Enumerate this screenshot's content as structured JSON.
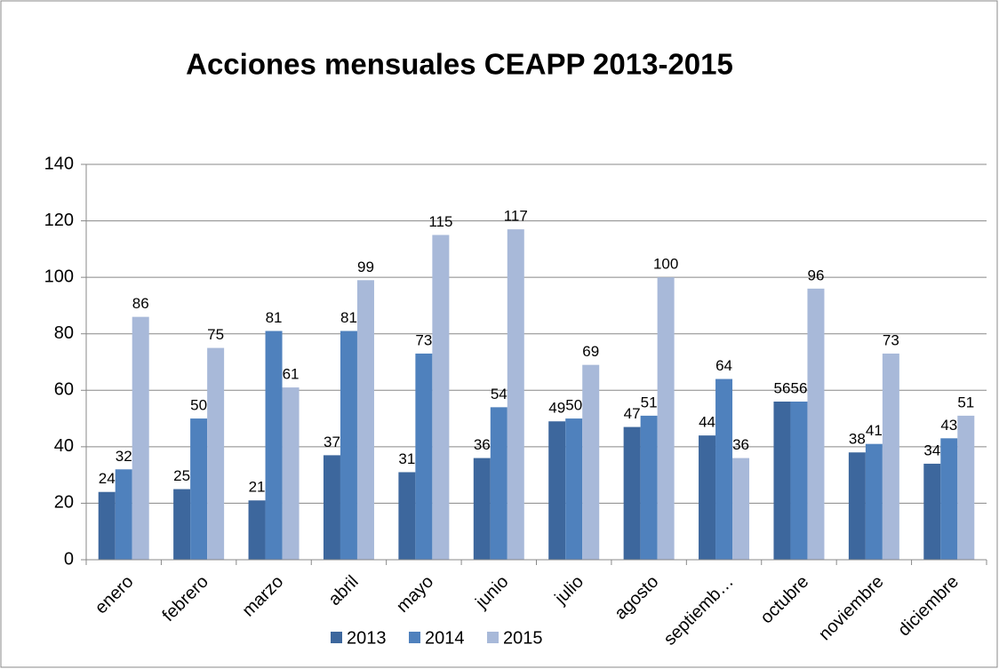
{
  "chart_data": {
    "type": "bar",
    "title": "Acciones mensuales CEAPP 2013-2015",
    "categories": [
      "enero",
      "febrero",
      "marzo",
      "abril",
      "mayo",
      "junio",
      "julio",
      "agosto",
      "septiemb…",
      "octubre",
      "noviembre",
      "diciembre"
    ],
    "series": [
      {
        "name": "2013",
        "color": "#3d679d",
        "values": [
          24,
          25,
          21,
          37,
          31,
          36,
          49,
          47,
          44,
          56,
          38,
          34
        ]
      },
      {
        "name": "2014",
        "color": "#4f81bd",
        "values": [
          32,
          50,
          81,
          81,
          73,
          54,
          50,
          51,
          64,
          56,
          41,
          43
        ]
      },
      {
        "name": "2015",
        "color": "#a8b9d9",
        "values": [
          86,
          75,
          61,
          99,
          115,
          117,
          69,
          100,
          36,
          96,
          73,
          51
        ]
      }
    ],
    "ylim": [
      0,
      140
    ],
    "yticks": [
      0,
      20,
      40,
      60,
      80,
      100,
      120,
      140
    ],
    "grid": true,
    "legend": "bottom"
  }
}
